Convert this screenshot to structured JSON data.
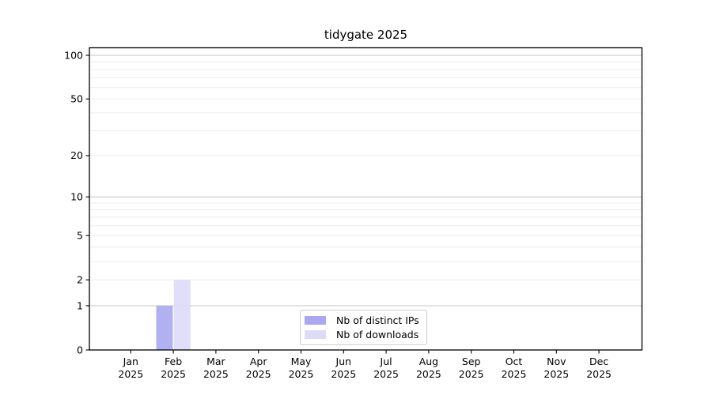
{
  "chart_data": {
    "type": "bar",
    "title": "tidygate 2025",
    "categories": [
      "Jan",
      "Feb",
      "Mar",
      "Apr",
      "May",
      "Jun",
      "Jul",
      "Aug",
      "Sep",
      "Oct",
      "Nov",
      "Dec"
    ],
    "x_tick_second_line": "2025",
    "xlabel": "",
    "ylabel": "",
    "y_ticks": [
      0,
      1,
      2,
      5,
      10,
      20,
      50,
      100
    ],
    "ylim": [
      0,
      100
    ],
    "yscale": "log1p",
    "grid": true,
    "grid_minor_values": [
      2,
      3,
      4,
      5,
      6,
      7,
      8,
      9,
      20,
      30,
      40,
      50,
      60,
      70,
      80,
      90
    ],
    "grid_major_values": [
      1,
      10,
      100
    ],
    "legend_position": "lower center",
    "series": [
      {
        "name": "Nb of distinct IPs",
        "color": "#a9a9f2",
        "values": [
          0,
          1,
          0,
          0,
          0,
          0,
          0,
          0,
          0,
          0,
          0,
          0
        ]
      },
      {
        "name": "Nb of downloads",
        "color": "#dcdcf8",
        "values": [
          0,
          2,
          0,
          0,
          0,
          0,
          0,
          0,
          0,
          0,
          0,
          0
        ]
      }
    ],
    "colors": {
      "spine": "#000000",
      "grid_major": "#c4c4c4",
      "grid_minor": "#ededed",
      "background": "#ffffff"
    }
  }
}
